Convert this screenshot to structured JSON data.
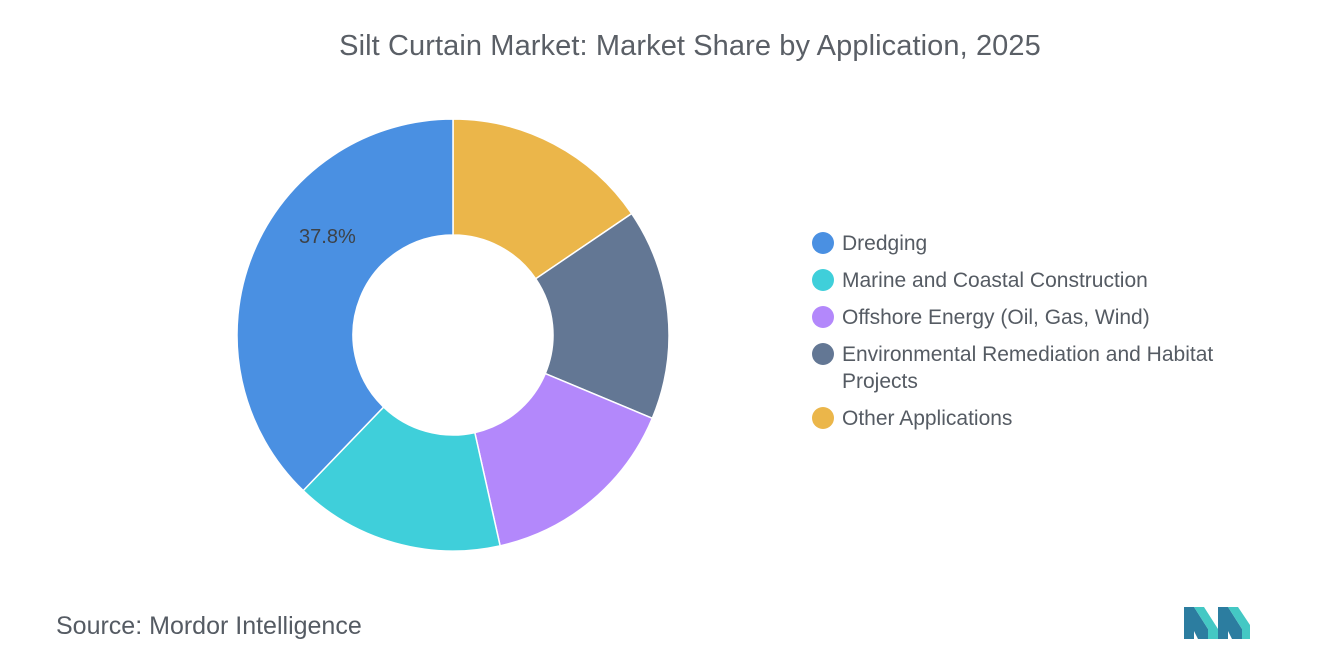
{
  "title": "Silt Curtain Market: Market Share by Application, 2025",
  "source": {
    "label": "Source:",
    "value": "Mordor Intelligence"
  },
  "colors": {
    "dredging": "#4a90e2",
    "marine": "#3fcfda",
    "offshore": "#b388fb",
    "environmental": "#637794",
    "other": "#ebb64a"
  },
  "chart_data": {
    "type": "pie",
    "donut": true,
    "title": "Silt Curtain Market: Market Share by Application, 2025",
    "legend_position": "right",
    "series": [
      {
        "name": "Dredging",
        "value": 37.8,
        "label": "37.8%",
        "color": "#4a90e2"
      },
      {
        "name": "Marine and Coastal Construction",
        "value": 15.7,
        "label": "",
        "color": "#3fcfda"
      },
      {
        "name": "Offshore Energy (Oil, Gas, Wind)",
        "value": 15.2,
        "label": "",
        "color": "#b388fb"
      },
      {
        "name": "Environmental Remediation and Habitat Projects",
        "value": 15.8,
        "label": "",
        "color": "#637794"
      },
      {
        "name": "Other Applications",
        "value": 15.5,
        "label": "",
        "color": "#ebb64a"
      }
    ],
    "draw_order": [
      "Other Applications",
      "Environmental Remediation and Habitat Projects",
      "Offshore Energy (Oil, Gas, Wind)",
      "Marine and Coastal Construction",
      "Dredging"
    ]
  },
  "legend": [
    {
      "label": "Dredging",
      "color": "#4a90e2"
    },
    {
      "label": "Marine and Coastal Construction",
      "color": "#3fcfda"
    },
    {
      "label": "Offshore Energy (Oil, Gas, Wind)",
      "color": "#b388fb"
    },
    {
      "label": "Environmental Remediation and Habitat Projects",
      "color": "#637794"
    },
    {
      "label": "Other Applications",
      "color": "#ebb64a"
    }
  ]
}
